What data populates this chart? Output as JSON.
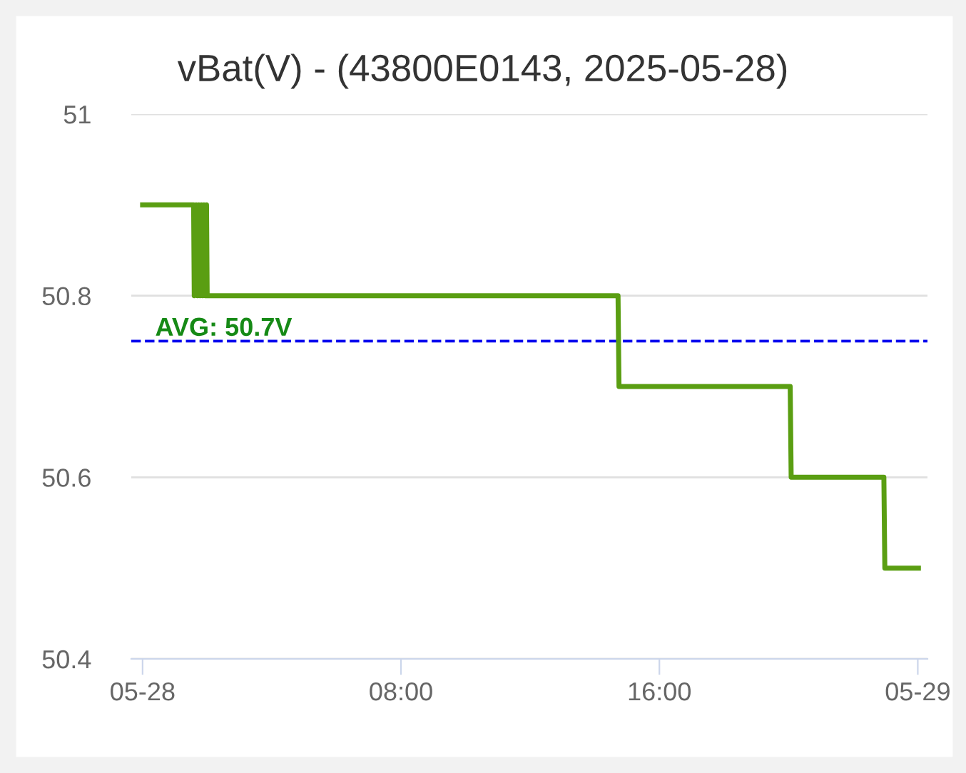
{
  "chart_data": {
    "type": "line",
    "title": "vBat(V) - (43800E0143, 2025-05-28)",
    "x": [
      0,
      1.58,
      1.6,
      1.66,
      1.7,
      1.74,
      1.78,
      1.82,
      1.86,
      1.9,
      1.94,
      1.98,
      2.0,
      8,
      14.72,
      14.75,
      20.05,
      20.08,
      22.95,
      22.98,
      24.02
    ],
    "series": [
      {
        "color": "#5a9e12",
        "values": [
          50.9,
          50.9,
          50.8,
          50.9,
          50.8,
          50.9,
          50.8,
          50.9,
          50.8,
          50.9,
          50.8,
          50.9,
          50.8,
          50.8,
          50.8,
          50.7,
          50.7,
          50.6,
          50.6,
          50.5,
          50.5
        ]
      }
    ],
    "xlim": [
      -0.35,
      24.3
    ],
    "xticks": [
      {
        "value": 0,
        "label": "05-28"
      },
      {
        "value": 8,
        "label": "08:00"
      },
      {
        "value": 16,
        "label": "16:00"
      },
      {
        "value": 24,
        "label": "05-29"
      }
    ],
    "ylim": [
      50.4,
      51
    ],
    "yticks": [
      50.4,
      50.6,
      50.8,
      51
    ],
    "ref_lines": [
      {
        "axis": "y",
        "value": 50.75,
        "label": "AVG: 50.7V",
        "color": "#0000ee",
        "line_style": "dashed"
      }
    ],
    "grid": "y"
  }
}
